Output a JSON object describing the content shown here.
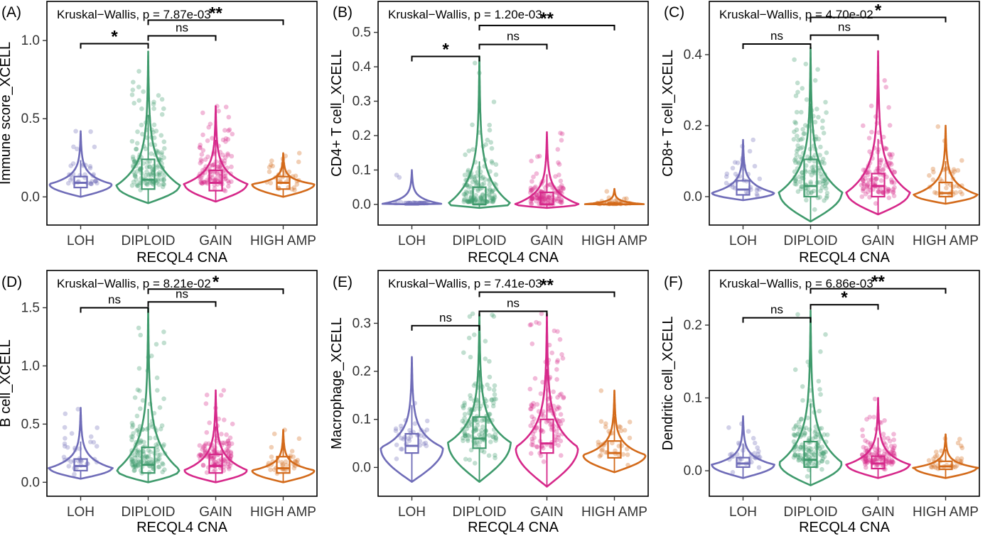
{
  "figure": {
    "colors": {
      "LOH": "#6f6cb8",
      "DIPLOID": "#3f9a6c",
      "GAIN": "#d6288a",
      "HIGH AMP": "#d36a1a"
    }
  },
  "chart_data": [
    {
      "panel": "(A)",
      "type": "violin",
      "title": "Kruskal−Wallis, p = 7.87e-03",
      "xlabel": "RECQL4 CNA",
      "ylabel": "Immune score_XCELL",
      "categories": [
        "LOH",
        "DIPLOID",
        "GAIN",
        "HIGH AMP"
      ],
      "yticks": [
        0.0,
        0.5,
        1.0
      ],
      "ytick_labels": [
        "0.0",
        "0.5",
        "1.0"
      ],
      "ylim": [
        -0.18,
        1.25
      ],
      "groups": [
        {
          "name": "LOH",
          "min": 0.0,
          "q1": 0.06,
          "median": 0.09,
          "q3": 0.13,
          "max": 0.42,
          "mode": 0.08
        },
        {
          "name": "DIPLOID",
          "min": -0.04,
          "q1": 0.05,
          "median": 0.11,
          "q3": 0.24,
          "max": 0.93,
          "mode": 0.07
        },
        {
          "name": "GAIN",
          "min": -0.03,
          "q1": 0.04,
          "median": 0.09,
          "q3": 0.17,
          "max": 0.58,
          "mode": 0.08
        },
        {
          "name": "HIGH AMP",
          "min": 0.0,
          "q1": 0.05,
          "median": 0.09,
          "q3": 0.13,
          "max": 0.28,
          "mode": 0.08
        }
      ],
      "comparisons": [
        {
          "from": "LOH",
          "to": "DIPLOID",
          "label": "*",
          "y": 0.98
        },
        {
          "from": "DIPLOID",
          "to": "GAIN",
          "label": "ns",
          "y": 1.03
        },
        {
          "from": "DIPLOID",
          "to": "HIGH AMP",
          "label": "**",
          "y": 1.13
        }
      ]
    },
    {
      "panel": "(B)",
      "type": "violin",
      "title": "Kruskal−Wallis, p = 1.20e-03",
      "xlabel": "RECQL4 CNA",
      "ylabel": "CD4+ T cell_XCELL",
      "categories": [
        "LOH",
        "DIPLOID",
        "GAIN",
        "HIGH AMP"
      ],
      "yticks": [
        0.0,
        0.1,
        0.2,
        0.3,
        0.4,
        0.5
      ],
      "ytick_labels": [
        "0.0",
        "0.1",
        "0.2",
        "0.3",
        "0.4",
        "0.5"
      ],
      "ylim": [
        -0.06,
        0.59
      ],
      "groups": [
        {
          "name": "LOH",
          "min": 0.0,
          "q1": 0.0,
          "median": 0.0,
          "q3": 0.002,
          "max": 0.1,
          "mode": 0.0
        },
        {
          "name": "DIPLOID",
          "min": -0.01,
          "q1": 0.0,
          "median": 0.0,
          "q3": 0.05,
          "max": 0.43,
          "mode": 0.0
        },
        {
          "name": "GAIN",
          "min": -0.01,
          "q1": 0.0,
          "median": 0.0,
          "q3": 0.035,
          "max": 0.21,
          "mode": 0.0
        },
        {
          "name": "HIGH AMP",
          "min": 0.0,
          "q1": 0.0,
          "median": 0.0,
          "q3": 0.003,
          "max": 0.045,
          "mode": 0.0
        }
      ],
      "comparisons": [
        {
          "from": "LOH",
          "to": "DIPLOID",
          "label": "*",
          "y": 0.43
        },
        {
          "from": "DIPLOID",
          "to": "GAIN",
          "label": "ns",
          "y": 0.465
        },
        {
          "from": "DIPLOID",
          "to": "HIGH AMP",
          "label": "**",
          "y": 0.52
        }
      ]
    },
    {
      "panel": "(C)",
      "type": "violin",
      "title": "Kruskal−Wallis, p = 4.70e-02",
      "xlabel": "RECQL4 CNA",
      "ylabel": "CD8+ T cell_XCELL",
      "categories": [
        "LOH",
        "DIPLOID",
        "GAIN",
        "HIGH AMP"
      ],
      "yticks": [
        0.0,
        0.2,
        0.4
      ],
      "ytick_labels": [
        "0.0",
        "0.2",
        "0.4"
      ],
      "ylim": [
        -0.08,
        0.55
      ],
      "groups": [
        {
          "name": "LOH",
          "min": -0.01,
          "q1": 0.005,
          "median": 0.02,
          "q3": 0.045,
          "max": 0.16,
          "mode": 0.01
        },
        {
          "name": "DIPLOID",
          "min": -0.07,
          "q1": 0.0,
          "median": 0.03,
          "q3": 0.105,
          "max": 0.42,
          "mode": 0.01
        },
        {
          "name": "GAIN",
          "min": -0.05,
          "q1": 0.0,
          "median": 0.03,
          "q3": 0.065,
          "max": 0.41,
          "mode": 0.01
        },
        {
          "name": "HIGH AMP",
          "min": -0.02,
          "q1": 0.0,
          "median": 0.01,
          "q3": 0.04,
          "max": 0.2,
          "mode": 0.005
        }
      ],
      "comparisons": [
        {
          "from": "LOH",
          "to": "DIPLOID",
          "label": "ns",
          "y": 0.43
        },
        {
          "from": "DIPLOID",
          "to": "GAIN",
          "label": "ns",
          "y": 0.455
        },
        {
          "from": "DIPLOID",
          "to": "HIGH AMP",
          "label": "*",
          "y": 0.505
        }
      ]
    },
    {
      "panel": "(D)",
      "type": "violin",
      "title": "Kruskal−Wallis, p = 8.21e-02",
      "xlabel": "RECQL4 CNA",
      "ylabel": "B cell_XCELL",
      "categories": [
        "LOH",
        "DIPLOID",
        "GAIN",
        "HIGH AMP"
      ],
      "yticks": [
        0.0,
        0.5,
        1.0,
        1.5
      ],
      "ytick_labels": [
        "0.0",
        "0.5",
        "1.0",
        "1.5"
      ],
      "ylim": [
        -0.12,
        1.82
      ],
      "groups": [
        {
          "name": "LOH",
          "min": 0.03,
          "q1": 0.1,
          "median": 0.14,
          "q3": 0.2,
          "max": 0.64,
          "mode": 0.12
        },
        {
          "name": "DIPLOID",
          "min": 0.0,
          "q1": 0.08,
          "median": 0.15,
          "q3": 0.3,
          "max": 1.5,
          "mode": 0.1
        },
        {
          "name": "GAIN",
          "min": 0.0,
          "q1": 0.08,
          "median": 0.14,
          "q3": 0.24,
          "max": 0.79,
          "mode": 0.1
        },
        {
          "name": "HIGH AMP",
          "min": 0.0,
          "q1": 0.08,
          "median": 0.12,
          "q3": 0.22,
          "max": 0.45,
          "mode": 0.1
        }
      ],
      "comparisons": [
        {
          "from": "LOH",
          "to": "DIPLOID",
          "label": "ns",
          "y": 1.5
        },
        {
          "from": "DIPLOID",
          "to": "GAIN",
          "label": "ns",
          "y": 1.55
        },
        {
          "from": "DIPLOID",
          "to": "HIGH AMP",
          "label": "*",
          "y": 1.66
        }
      ]
    },
    {
      "panel": "(E)",
      "type": "violin",
      "title": "Kruskal−Wallis, p = 7.41e-03",
      "xlabel": "RECQL4 CNA",
      "ylabel": "Macrophage_XCELL",
      "categories": [
        "LOH",
        "DIPLOID",
        "GAIN",
        "HIGH AMP"
      ],
      "yticks": [
        0.0,
        0.1,
        0.2,
        0.3
      ],
      "ytick_labels": [
        "0.0",
        "0.1",
        "0.2",
        "0.3"
      ],
      "ylim": [
        -0.06,
        0.41
      ],
      "groups": [
        {
          "name": "LOH",
          "min": -0.03,
          "q1": 0.03,
          "median": 0.045,
          "q3": 0.07,
          "max": 0.23,
          "mode": 0.04
        },
        {
          "name": "DIPLOID",
          "min": -0.03,
          "q1": 0.04,
          "median": 0.06,
          "q3": 0.105,
          "max": 0.32,
          "mode": 0.05
        },
        {
          "name": "GAIN",
          "min": -0.04,
          "q1": 0.03,
          "median": 0.05,
          "q3": 0.1,
          "max": 0.32,
          "mode": 0.04
        },
        {
          "name": "HIGH AMP",
          "min": -0.01,
          "q1": 0.02,
          "median": 0.03,
          "q3": 0.055,
          "max": 0.16,
          "mode": 0.025
        }
      ],
      "comparisons": [
        {
          "from": "LOH",
          "to": "DIPLOID",
          "label": "ns",
          "y": 0.295
        },
        {
          "from": "DIPLOID",
          "to": "GAIN",
          "label": "ns",
          "y": 0.325
        },
        {
          "from": "DIPLOID",
          "to": "HIGH AMP",
          "label": "**",
          "y": 0.365
        }
      ]
    },
    {
      "panel": "(F)",
      "type": "violin",
      "title": "Kruskal−Wallis, p = 6.86e-03",
      "xlabel": "RECQL4 CNA",
      "ylabel": "Dendritic cell_XCELL",
      "categories": [
        "LOH",
        "DIPLOID",
        "GAIN",
        "HIGH AMP"
      ],
      "yticks": [
        0.0,
        0.1,
        0.2
      ],
      "ytick_labels": [
        "0.0",
        "0.1",
        "0.2"
      ],
      "ylim": [
        -0.035,
        0.275
      ],
      "groups": [
        {
          "name": "LOH",
          "min": -0.01,
          "q1": 0.005,
          "median": 0.01,
          "q3": 0.018,
          "max": 0.075,
          "mode": 0.008
        },
        {
          "name": "DIPLOID",
          "min": -0.02,
          "q1": 0.005,
          "median": 0.015,
          "q3": 0.04,
          "max": 0.22,
          "mode": 0.01
        },
        {
          "name": "GAIN",
          "min": -0.01,
          "q1": 0.003,
          "median": 0.01,
          "q3": 0.02,
          "max": 0.1,
          "mode": 0.008
        },
        {
          "name": "HIGH AMP",
          "min": -0.01,
          "q1": 0.002,
          "median": 0.006,
          "q3": 0.013,
          "max": 0.05,
          "mode": 0.004
        }
      ],
      "comparisons": [
        {
          "from": "LOH",
          "to": "DIPLOID",
          "label": "ns",
          "y": 0.21
        },
        {
          "from": "DIPLOID",
          "to": "GAIN",
          "label": "*",
          "y": 0.228
        },
        {
          "from": "DIPLOID",
          "to": "HIGH AMP",
          "label": "**",
          "y": 0.25
        }
      ]
    }
  ]
}
